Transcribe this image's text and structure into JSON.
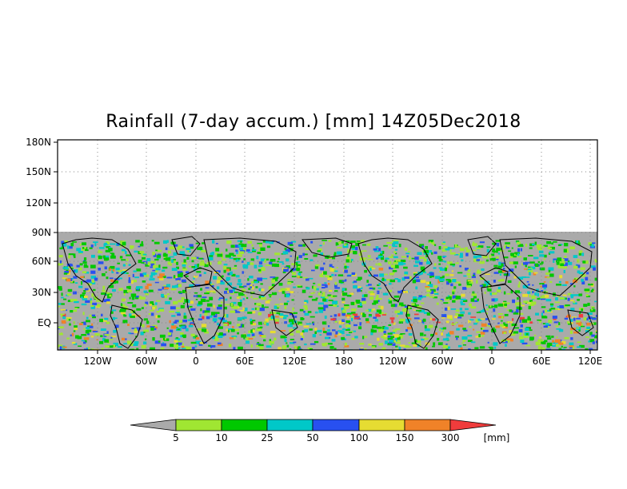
{
  "title": "Rainfall (7-day accum.) [mm] 14Z05Dec2018",
  "map": {
    "y_ticks": [
      "180N",
      "150N",
      "120N",
      "90N",
      "60N",
      "30N",
      "EQ"
    ],
    "x_ticks": [
      "120W",
      "60W",
      "0",
      "60E",
      "120E",
      "180",
      "120W",
      "60W",
      "0",
      "60E",
      "120E"
    ],
    "colors": {
      "missing": "#aaaaaa",
      "land_border": "#000000",
      "no_data_region": "#ffffff"
    }
  },
  "colorbar": {
    "unit": "[mm]",
    "labels": [
      "5",
      "10",
      "25",
      "50",
      "100",
      "150",
      "300"
    ],
    "colors": [
      "#aaaaaa",
      "#a0e632",
      "#00c800",
      "#00c8c8",
      "#2850f0",
      "#e6dc32",
      "#f08228",
      "#f03c3c"
    ]
  }
}
